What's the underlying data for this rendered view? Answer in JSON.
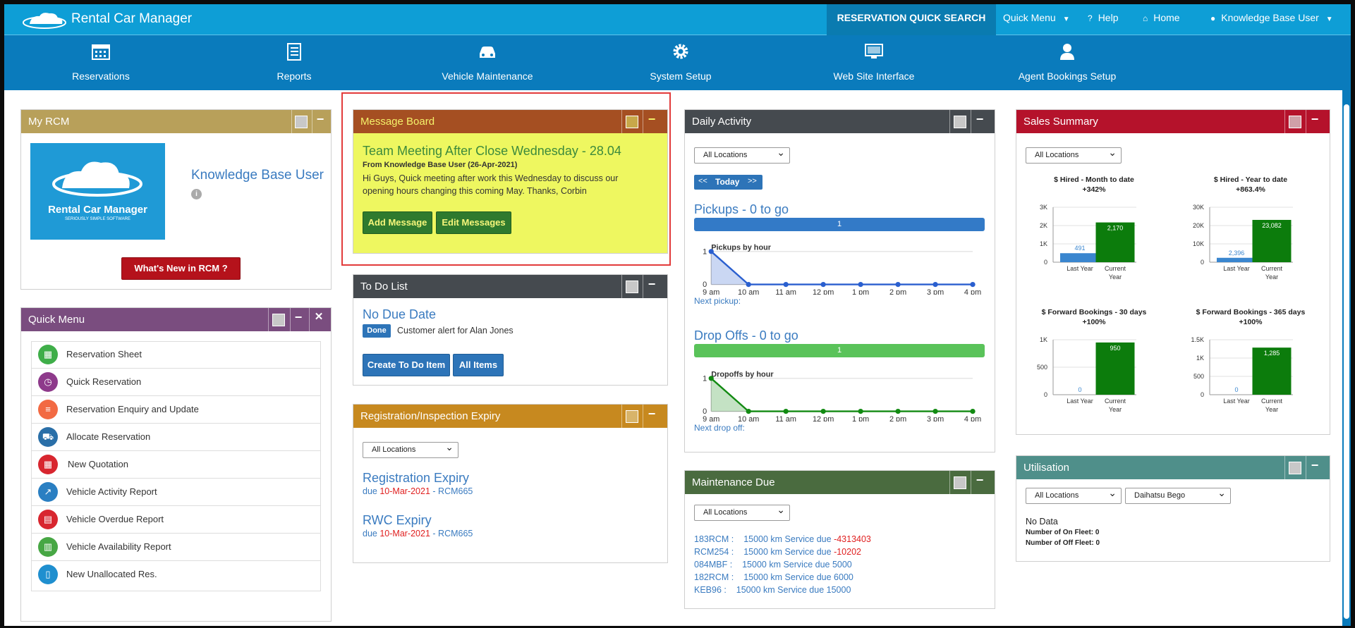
{
  "app": {
    "name": "Rental Car Manager"
  },
  "topnav": {
    "reservation_quick_search": "RESERVATION QUICK SEARCH",
    "quick_menu": "Quick Menu",
    "help": "Help",
    "home": "Home",
    "user": "Knowledge Base User"
  },
  "modules": [
    {
      "label": "Reservations",
      "icon": "calendar-icon"
    },
    {
      "label": "Reports",
      "icon": "clipboard-icon"
    },
    {
      "label": "Vehicle Maintenance",
      "icon": "car-icon"
    },
    {
      "label": "System Setup",
      "icon": "gear-icon"
    },
    {
      "label": "Web Site Interface",
      "icon": "monitor-icon"
    },
    {
      "label": "Agent Bookings Setup",
      "icon": "agent-icon"
    }
  ],
  "my_rcm": {
    "title": "My RCM",
    "user": "Knowledge Base User",
    "whats_new": "What's New in RCM ?",
    "logo_text": "Rental Car Manager",
    "logo_tag": "SERIOUSLY SIMPLE SOFTWARE"
  },
  "quick_menu": {
    "title": "Quick Menu",
    "items": [
      {
        "label": "Reservation Sheet",
        "icon": "calendar-icon",
        "color": "#3fae49"
      },
      {
        "label": "Quick Reservation",
        "icon": "clock-calendar-icon",
        "color": "#8e3a8b"
      },
      {
        "label": "Reservation Enquiry and Update",
        "icon": "search-list-icon",
        "color": "#f26a43"
      },
      {
        "label": "Allocate Reservation",
        "icon": "car-allocate-icon",
        "color": "#2a6fa8"
      },
      {
        "label": "New Quotation",
        "icon": "quote-calendar-icon",
        "color": "#d8262f"
      },
      {
        "label": "Vehicle Activity Report",
        "icon": "activity-chart-icon",
        "color": "#2a7fc2"
      },
      {
        "label": "Vehicle Overdue Report",
        "icon": "overdue-report-icon",
        "color": "#d8262f"
      },
      {
        "label": "Vehicle Availability Report",
        "icon": "bar-chart-icon",
        "color": "#47a744"
      },
      {
        "label": "New Unallocated Res.",
        "icon": "book-icon",
        "color": "#1f8fcf"
      }
    ]
  },
  "message_board": {
    "title": "Message Board",
    "headline": "Team Meeting After Close Wednesday - 28.04",
    "from": "From Knowledge Base User (26-Apr-2021)",
    "body": "Hi Guys, Quick meeting after work this Wednesday to discuss our opening hours changing this coming May. Thanks, Corbin",
    "add": "Add Message",
    "edit": "Edit Messages"
  },
  "todo": {
    "title": "To Do List",
    "section": "No Due Date",
    "done": "Done",
    "item": "Customer alert for Alan Jones",
    "create": "Create To Do Item",
    "all": "All Items"
  },
  "rego": {
    "title": "Registration/Inspection Expiry",
    "location": "All Locations",
    "items": [
      {
        "title": "Registration Expiry",
        "prefix": "due",
        "date": "10-Mar-2021",
        "suffix": "- RCM665"
      },
      {
        "title": "RWC Expiry",
        "prefix": "due",
        "date": "10-Mar-2021",
        "suffix": "- RCM665"
      }
    ]
  },
  "daily": {
    "title": "Daily Activity",
    "location": "All Locations",
    "prev": "<<",
    "today": "Today",
    "next": ">>",
    "pickups": {
      "title": "Pickups - 0 to go",
      "bar": "1",
      "chart_title": "Pickups by hour",
      "next": "Next pickup:"
    },
    "dropoffs": {
      "title": "Drop Offs - 0 to go",
      "bar": "1",
      "chart_title": "Dropoffs by hour",
      "next": "Next drop off:"
    }
  },
  "maintenance": {
    "title": "Maintenance Due",
    "location": "All Locations",
    "items": [
      {
        "rego": "183RCM :",
        "text": "15000 km Service due",
        "value": "-4313403",
        "red": true
      },
      {
        "rego": "RCM254 :",
        "text": "15000 km Service due",
        "value": "-10202",
        "red": true
      },
      {
        "rego": "084MBF :",
        "text": "15000 km Service due 5000",
        "value": "",
        "red": false
      },
      {
        "rego": "182RCM :",
        "text": "15000 km Service due 6000",
        "value": "",
        "red": false
      },
      {
        "rego": "KEB96 :",
        "text": "15000 km Service due 15000",
        "value": "",
        "red": false
      }
    ]
  },
  "sales": {
    "title": "Sales Summary",
    "location": "All Locations"
  },
  "utilisation": {
    "title": "Utilisation",
    "location": "All Locations",
    "vehicle": "Daihatsu Bego",
    "no_data": "No Data",
    "on_fleet": "Number of On Fleet: 0",
    "off_fleet": "Number of Off Fleet: 0"
  },
  "chart_data": [
    {
      "type": "line",
      "title": "Pickups by hour",
      "categories": [
        "9 am",
        "10 am",
        "11 am",
        "12 pm",
        "1 pm",
        "2 pm",
        "3 pm",
        "4 pm"
      ],
      "values": [
        1,
        0,
        0,
        0,
        0,
        0,
        0,
        0
      ],
      "ylim": [
        0,
        1
      ],
      "color": "#2a5fcf"
    },
    {
      "type": "line",
      "title": "Dropoffs by hour",
      "categories": [
        "9 am",
        "10 am",
        "11 am",
        "12 pm",
        "1 pm",
        "2 pm",
        "3 pm",
        "4 pm"
      ],
      "values": [
        1,
        0,
        0,
        0,
        0,
        0,
        0,
        0
      ],
      "ylim": [
        0,
        1
      ],
      "color": "#128a12"
    },
    {
      "type": "bar",
      "title": "$ Hired - Month to date",
      "subtitle": "+342%",
      "categories": [
        "Last Year",
        "Current Year"
      ],
      "values": [
        491,
        2170
      ],
      "data_labels": [
        "491",
        "2,170"
      ],
      "yticks": [
        "0",
        "1K",
        "2K",
        "3K"
      ],
      "ylim": [
        0,
        3000
      ]
    },
    {
      "type": "bar",
      "title": "$ Hired - Year to date",
      "subtitle": "+863.4%",
      "categories": [
        "Last Year",
        "Current Year"
      ],
      "values": [
        2396,
        23082
      ],
      "data_labels": [
        "2,396",
        "23,082"
      ],
      "yticks": [
        "0",
        "10K",
        "20K",
        "30K"
      ],
      "ylim": [
        0,
        30000
      ]
    },
    {
      "type": "bar",
      "title": "$ Forward Bookings - 30 days",
      "subtitle": "+100%",
      "categories": [
        "Last Year",
        "Current Year"
      ],
      "values": [
        0,
        950
      ],
      "data_labels": [
        "0",
        "950"
      ],
      "yticks": [
        "0",
        "500",
        "1K"
      ],
      "ylim": [
        0,
        1000
      ]
    },
    {
      "type": "bar",
      "title": "$ Forward Bookings - 365 days",
      "subtitle": "+100%",
      "categories": [
        "Last Year",
        "Current Year"
      ],
      "values": [
        0,
        1285
      ],
      "data_labels": [
        "0",
        "1,285"
      ],
      "yticks": [
        "0",
        "500",
        "1K",
        "1.5K"
      ],
      "ylim": [
        0,
        1500
      ]
    }
  ]
}
